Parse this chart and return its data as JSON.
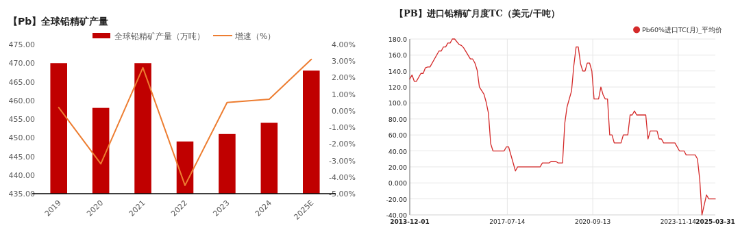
{
  "chart_data": [
    {
      "type": "bar",
      "title": "【Pb】全球铅精矿产量",
      "categories": [
        "2019",
        "2020",
        "2021",
        "2022",
        "2023",
        "2024",
        "2025E"
      ],
      "series": [
        {
          "name": "全球铅精矿产量（万吨）",
          "color": "#c00000",
          "values": [
            470,
            458,
            470,
            449,
            451,
            454,
            468
          ]
        },
        {
          "name": "增速（%）",
          "type": "line",
          "axis": "y2",
          "color": "#ed7d31",
          "values": [
            0.2,
            -3.2,
            2.6,
            -4.5,
            0.5,
            0.7,
            3.1
          ]
        }
      ],
      "ylim": [
        435,
        475
      ],
      "yticks": [
        {
          "value": 435,
          "label": "435.00"
        },
        {
          "value": 440,
          "label": "440.00"
        },
        {
          "value": 445,
          "label": "445.00"
        },
        {
          "value": 450,
          "label": "450.00"
        },
        {
          "value": 455,
          "label": "455.00"
        },
        {
          "value": 460,
          "label": "460.00"
        },
        {
          "value": 465,
          "label": "465.00"
        },
        {
          "value": 470,
          "label": "470.00"
        },
        {
          "value": 475,
          "label": "475.00"
        }
      ],
      "y2lim": [
        -5,
        4
      ],
      "y2ticks": [
        {
          "value": -5,
          "label": "-5.00%"
        },
        {
          "value": -4,
          "label": "-4.00%"
        },
        {
          "value": -3,
          "label": "-3.00%"
        },
        {
          "value": -2,
          "label": "-2.00%"
        },
        {
          "value": -1,
          "label": "-1.00%"
        },
        {
          "value": 0,
          "label": "0.00%"
        },
        {
          "value": 1,
          "label": "1.00%"
        },
        {
          "value": 2,
          "label": "2.00%"
        },
        {
          "value": 3,
          "label": "3.00%"
        },
        {
          "value": 4,
          "label": "4.00%"
        }
      ],
      "legend": "top",
      "grid": false
    },
    {
      "type": "line",
      "title": "【PB】进口铅精矿月度TC（美元/干吨）",
      "x": [
        "2013-12-01",
        "2014-01",
        "2014-02",
        "2014-03",
        "2014-05",
        "2014-06",
        "2014-07",
        "2014-08",
        "2014-09",
        "2015-01",
        "2015-02",
        "2015-03",
        "2015-04",
        "2015-05",
        "2015-06",
        "2015-07",
        "2015-08",
        "2015-10",
        "2015-11",
        "2015-12",
        "2016-03",
        "2016-04",
        "2016-05",
        "2016-06",
        "2016-07",
        "2016-09",
        "2016-10",
        "2016-11",
        "2016-12",
        "2017-01",
        "2017-06",
        "2017-07",
        "2017-08",
        "2017-11",
        "2017-12",
        "2018-10",
        "2018-11",
        "2019-02",
        "2019-03",
        "2019-05",
        "2019-06",
        "2019-08",
        "2019-09",
        "2019-10",
        "2019-12",
        "2020-01",
        "2020-02",
        "2020-03",
        "2020-04",
        "2020-05",
        "2020-06",
        "2020-07",
        "2020-08",
        "2020-09",
        "2020-10",
        "2020-12",
        "2021-01",
        "2021-02",
        "2021-03",
        "2021-04",
        "2021-05",
        "2021-06",
        "2021-07",
        "2021-10",
        "2021-11",
        "2022-01",
        "2022-02",
        "2022-03",
        "2022-04",
        "2022-05",
        "2022-09",
        "2022-10",
        "2022-11",
        "2023-02",
        "2023-03",
        "2023-04",
        "2023-05",
        "2023-10",
        "2023-12",
        "2024-02",
        "2024-03",
        "2024-07",
        "2024-08",
        "2024-09",
        "2024-10",
        "2024-12",
        "2025-01",
        "2025-03-31"
      ],
      "series": [
        {
          "name": "Pb60%进口TC(月)_平均价",
          "color": "#d42a2a",
          "values": [
            130,
            135,
            127,
            127,
            137,
            137,
            144,
            145,
            145,
            165,
            165,
            170,
            170,
            175,
            175,
            180,
            180,
            173,
            172,
            169,
            155,
            155,
            150,
            141,
            120,
            111,
            101,
            87,
            49,
            40,
            40,
            45,
            45,
            15,
            20,
            20,
            25,
            25,
            27,
            27,
            25,
            25,
            75,
            95,
            115,
            147,
            170,
            170,
            149,
            140,
            140,
            150,
            150,
            140,
            105,
            105,
            120,
            110,
            105,
            105,
            60,
            60,
            50,
            50,
            60,
            60,
            85,
            85,
            90,
            85,
            85,
            55,
            65,
            65,
            55,
            55,
            50,
            50,
            40,
            40,
            35,
            35,
            30,
            4,
            -40,
            -15,
            -20,
            -20
          ]
        }
      ],
      "xlim": [
        "2013-12-01",
        "2025-03-31"
      ],
      "xticks": [
        "2013-12-01",
        "2017-07-14",
        "2020-09-13",
        "2023-11-14",
        "2025-03-31"
      ],
      "ylim": [
        -40,
        180
      ],
      "yticks": [
        {
          "value": -40,
          "label": "-40.00"
        },
        {
          "value": -20,
          "label": "-20.00"
        },
        {
          "value": 0,
          "label": "0.000"
        },
        {
          "value": 20,
          "label": "20.00"
        },
        {
          "value": 40,
          "label": "40.00"
        },
        {
          "value": 60,
          "label": "60.00"
        },
        {
          "value": 80,
          "label": "80.00"
        },
        {
          "value": 100,
          "label": "100.0"
        },
        {
          "value": 120,
          "label": "120.0"
        },
        {
          "value": 140,
          "label": "140.0"
        },
        {
          "value": 160,
          "label": "160.0"
        },
        {
          "value": 180,
          "label": "180.0"
        }
      ],
      "legend": "top right",
      "grid": true
    }
  ]
}
